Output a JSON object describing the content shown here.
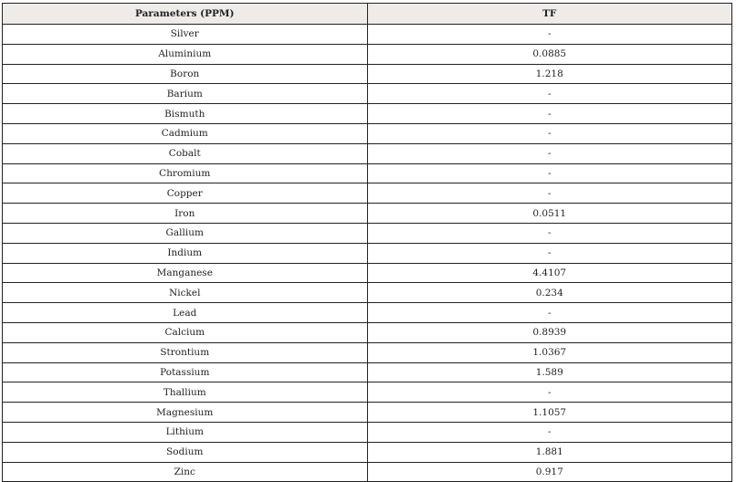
{
  "table": {
    "headers": [
      "Parameters (PPM)",
      "TF"
    ],
    "rows": [
      [
        "Silver",
        "-"
      ],
      [
        "Aluminium",
        "0.0885"
      ],
      [
        "Boron",
        "1.218"
      ],
      [
        "Barium",
        "-"
      ],
      [
        "Bismuth",
        "-"
      ],
      [
        "Cadmium",
        "-"
      ],
      [
        "Cobalt",
        "-"
      ],
      [
        "Chromium",
        "-"
      ],
      [
        "Copper",
        "-"
      ],
      [
        "Iron",
        "0.0511"
      ],
      [
        "Gallium",
        "-"
      ],
      [
        "Indium",
        "-"
      ],
      [
        "Manganese",
        "4.4107"
      ],
      [
        "Nickel",
        "0.234"
      ],
      [
        "Lead",
        "-"
      ],
      [
        "Calcium",
        "0.8939"
      ],
      [
        "Strontium",
        "1.0367"
      ],
      [
        "Potassium",
        "1.589"
      ],
      [
        "Thallium",
        "-"
      ],
      [
        "Magnesium",
        "1.1057"
      ],
      [
        "Lithium",
        "-"
      ],
      [
        "Sodium",
        "1.881"
      ],
      [
        "Zinc",
        "0.917"
      ]
    ],
    "header_bg": "#efebe9"
  }
}
